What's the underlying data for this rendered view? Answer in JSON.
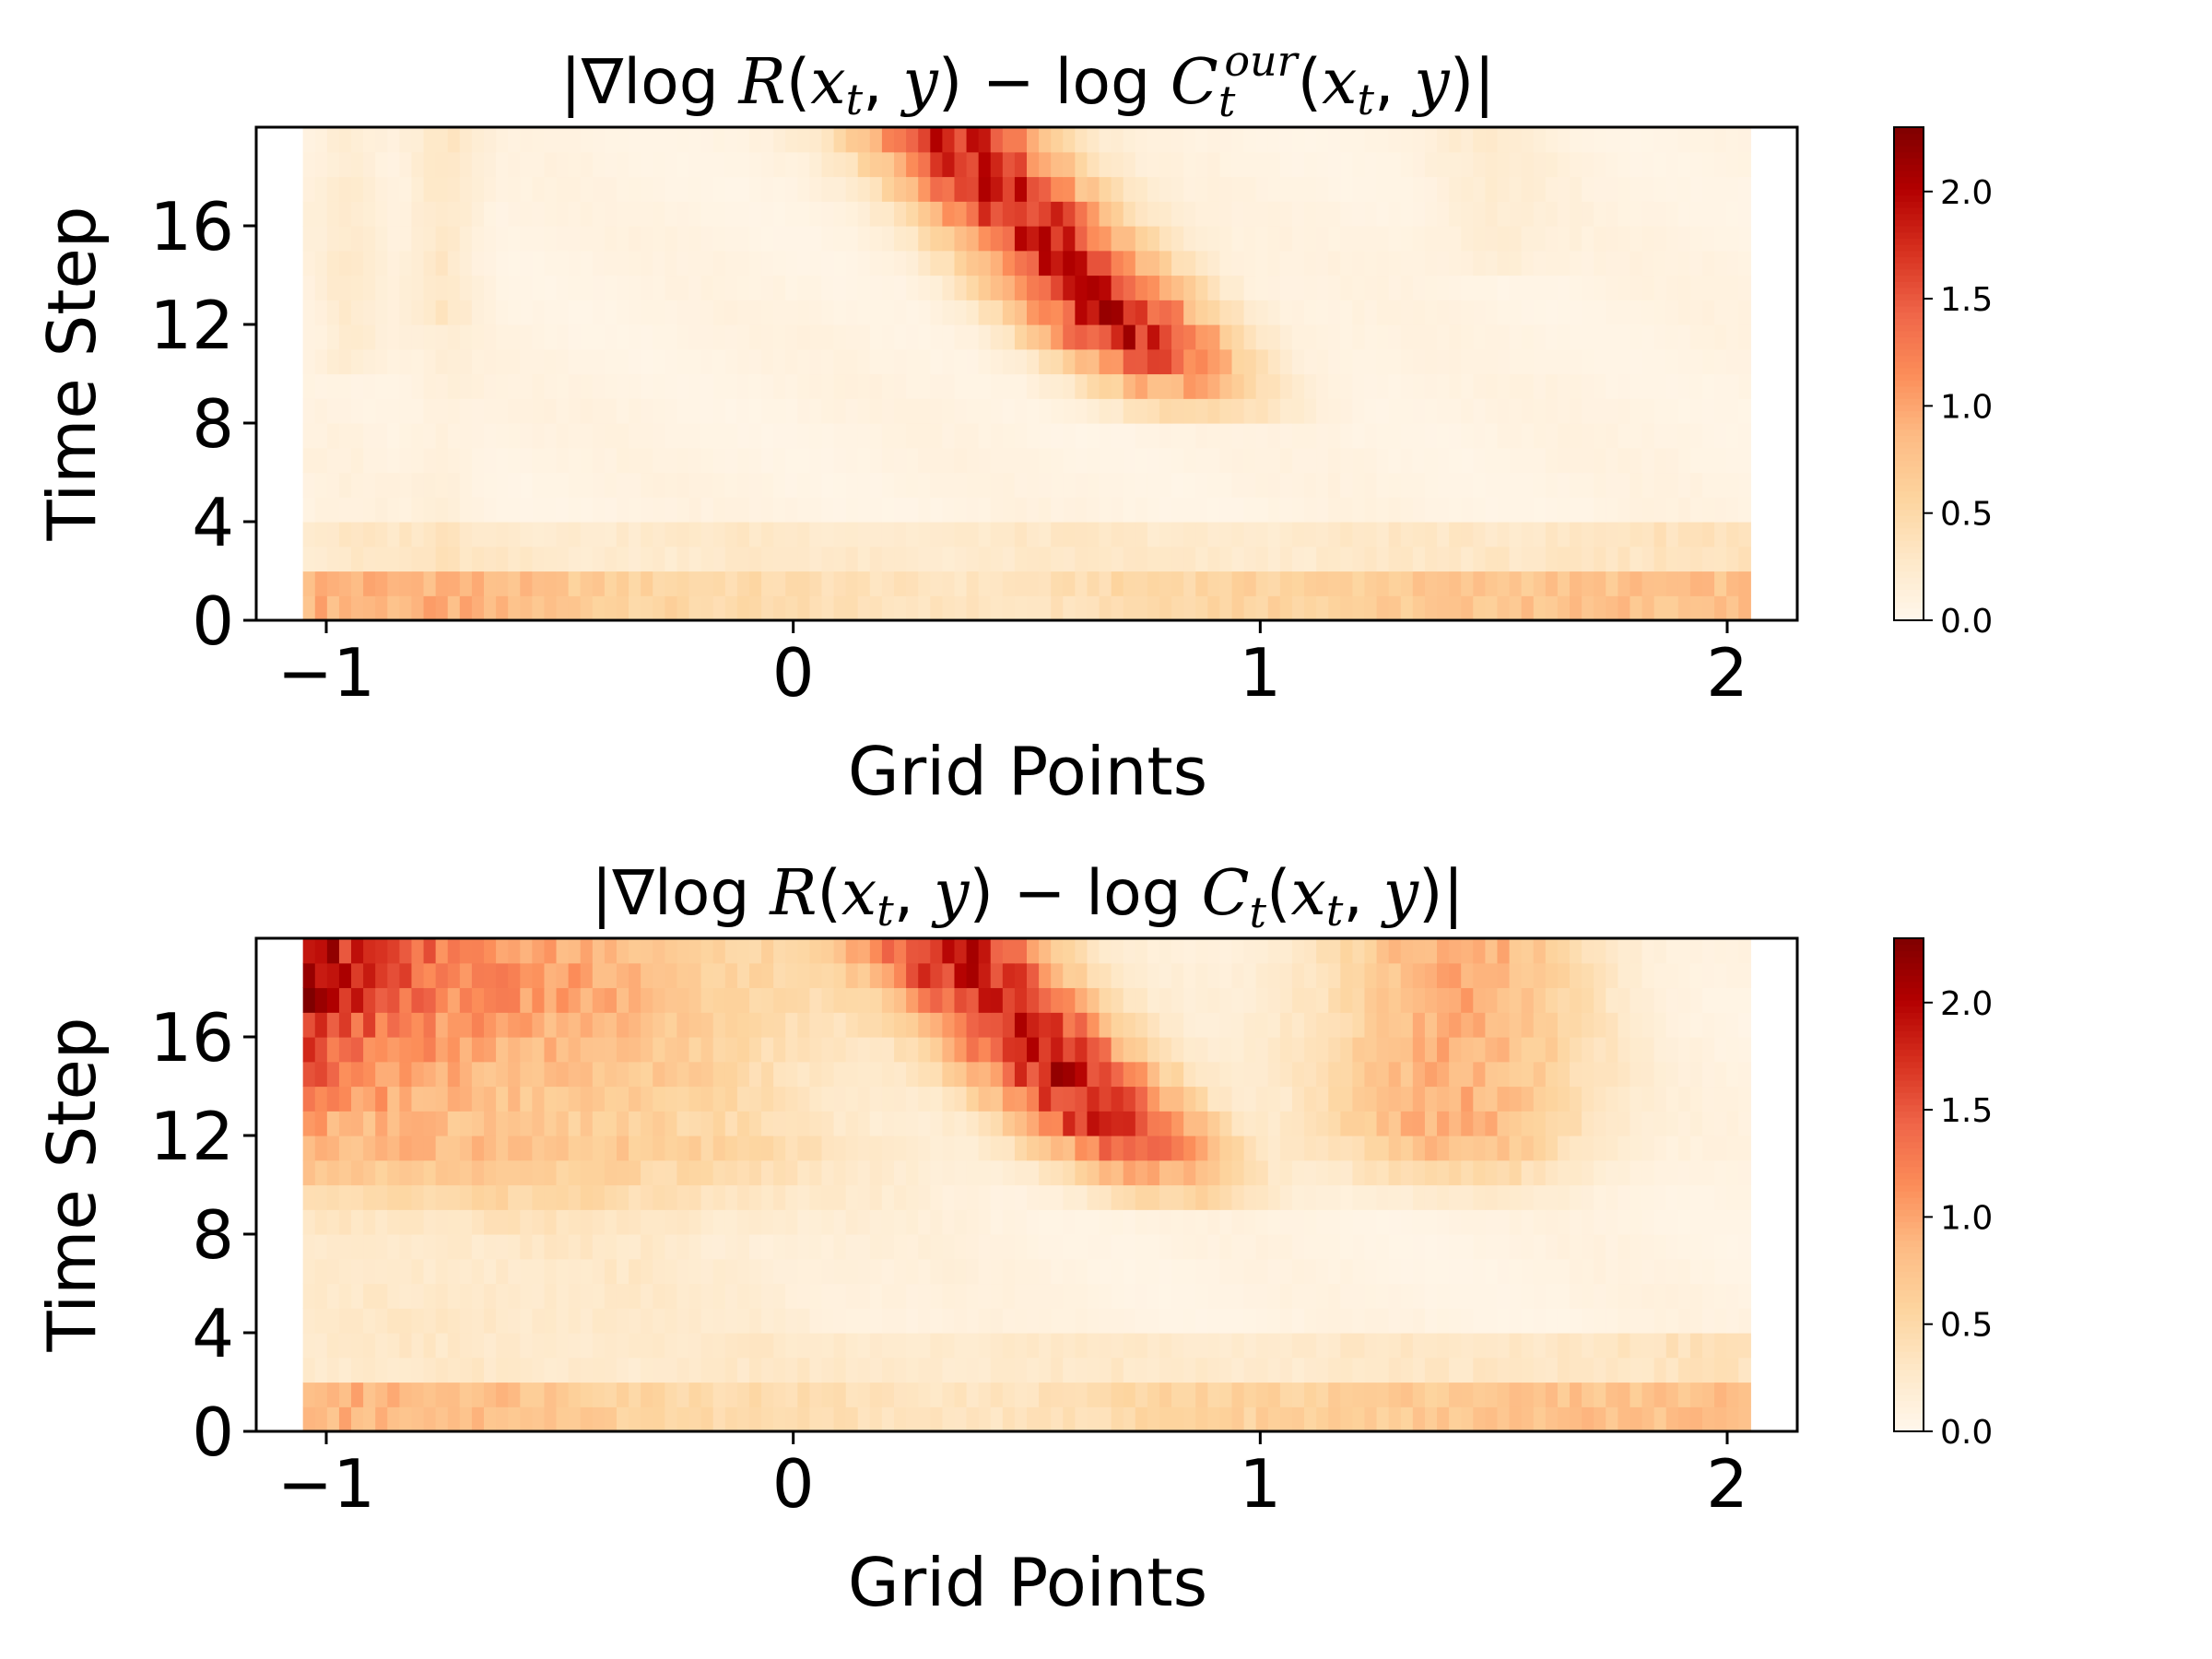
{
  "chart_data": [
    {
      "type": "heatmap",
      "title": "|∇log R(x_t, y) − log C_t^our(x_t, y)|",
      "title_parts": {
        "prefix": "|∇log ",
        "R": "R",
        "arg_open": "(",
        "x": "x",
        "x_sub": "t",
        "arg_mid": ", ",
        "y": "y",
        "arg_close": ")",
        "minus_log": " − log ",
        "C": "C",
        "C_sub": "t",
        "C_sup": "our",
        "arg2_open": "(",
        "x2": "x",
        "x2_sub": "t",
        "arg2_mid": ", ",
        "y2": "y",
        "arg2_close": ")|"
      },
      "xlabel": "Grid Points",
      "ylabel": "Time Step",
      "xlim": [
        -1.05,
        2.05
      ],
      "ylim": [
        0,
        20
      ],
      "xticks": [
        -1,
        0,
        1,
        2
      ],
      "xtick_labels": [
        "−1",
        "0",
        "1",
        "2"
      ],
      "yticks": [
        0,
        4,
        8,
        12,
        16
      ],
      "ytick_labels": [
        "0",
        "4",
        "8",
        "12",
        "16"
      ],
      "colormap": "OrRd",
      "colorbar": {
        "vmin": 0.0,
        "vmax": 2.3,
        "ticks": [
          "0.0",
          "0.5",
          "1.0",
          "1.5",
          "2.0"
        ]
      },
      "features": {
        "has_left_ridge": false,
        "diagonal_band": "high values from x≈0.3 at t=20 down to x≈0.9 at t≈8",
        "bottom_rows": "moderate values (~0.6–0.9) for t=0–2"
      }
    },
    {
      "type": "heatmap",
      "title": "|∇log R(x_t, y) − log C_t(x_t, y)|",
      "title_parts": {
        "prefix": "|∇log ",
        "R": "R",
        "arg_open": "(",
        "x": "x",
        "x_sub": "t",
        "arg_mid": ", ",
        "y": "y",
        "arg_close": ")",
        "minus_log": " − log ",
        "C": "C",
        "C_sub": "t",
        "C_sup": "",
        "arg2_open": "(",
        "x2": "x",
        "x2_sub": "t",
        "arg2_mid": ", ",
        "y2": "y",
        "arg2_close": ")|"
      },
      "xlabel": "Grid Points",
      "ylabel": "Time Step",
      "xlim": [
        -1.05,
        2.05
      ],
      "ylim": [
        0,
        20
      ],
      "xticks": [
        -1,
        0,
        1,
        2
      ],
      "xtick_labels": [
        "−1",
        "0",
        "1",
        "2"
      ],
      "yticks": [
        0,
        4,
        8,
        12,
        16
      ],
      "ytick_labels": [
        "0",
        "4",
        "8",
        "12",
        "16"
      ],
      "colormap": "OrRd",
      "colorbar": {
        "vmin": 0.0,
        "vmax": 2.3,
        "ticks": [
          "0.0",
          "0.5",
          "1.0",
          "1.5",
          "2.0"
        ]
      },
      "features": {
        "has_left_ridge": true,
        "diagonal_band": "high values from x≈0.3 at t=20 down to x≈0.9 at t≈9",
        "right_region": "moderate values (~0.8–1.0) around x≈1.4 for t=10–20",
        "bottom_rows": "moderate values (~0.6–0.9) for t=0–2"
      }
    }
  ]
}
